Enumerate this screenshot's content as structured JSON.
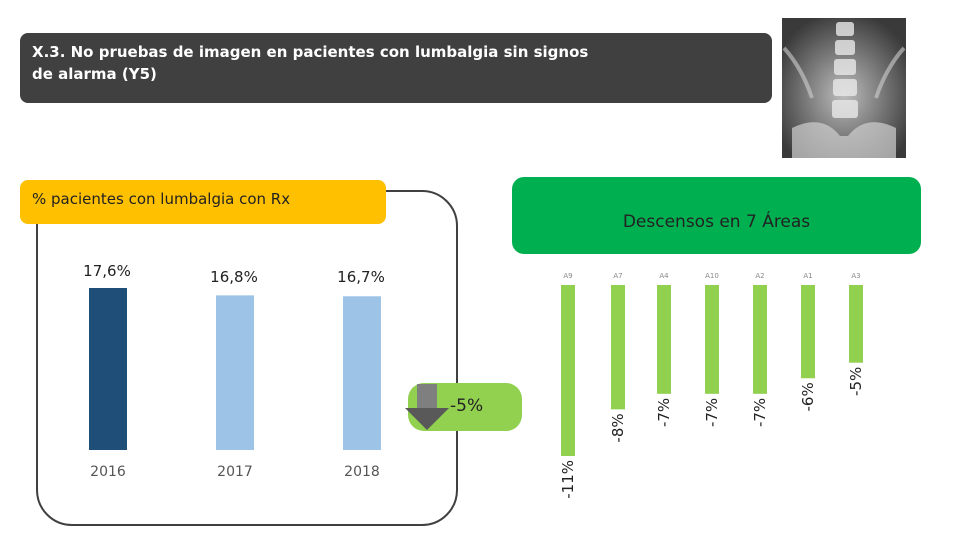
{
  "header": {
    "title_line1": "X.3. No pruebas de imagen en pacientes con lumbalgia sin signos",
    "title_line2": "de alarma (Y5)"
  },
  "left_panel": {
    "title": "% pacientes con lumbalgia con Rx"
  },
  "right_panel": {
    "title": "Descensos en 7 Áreas"
  },
  "change": {
    "label": "-5%"
  },
  "colors": {
    "bar_2016": "#1f4e79",
    "bar_other": "#9dc3e6",
    "bar_drop": "#92d050",
    "title_bg": "#404040",
    "yellow": "#ffc000",
    "green": "#00b050"
  },
  "chart_data": [
    {
      "type": "bar",
      "title": "% pacientes con lumbalgia con Rx",
      "categories": [
        "2016",
        "2017",
        "2018"
      ],
      "values": [
        17.6,
        16.8,
        16.7
      ],
      "value_labels": [
        "17,6%",
        "16,8%",
        "16,7%"
      ],
      "ylim": [
        0,
        17.6
      ]
    },
    {
      "type": "bar",
      "title": "Descensos en 7 Áreas",
      "categories": [
        "A9",
        "A7",
        "A4",
        "A10",
        "A2",
        "A1",
        "A3"
      ],
      "values": [
        -11,
        -8,
        -7,
        -7,
        -7,
        -6,
        -5
      ],
      "value_labels": [
        "-11%",
        "-8%",
        "-7%",
        "-7%",
        "-7%",
        "-6%",
        "-5%"
      ],
      "ylim": [
        -11,
        0
      ]
    }
  ]
}
